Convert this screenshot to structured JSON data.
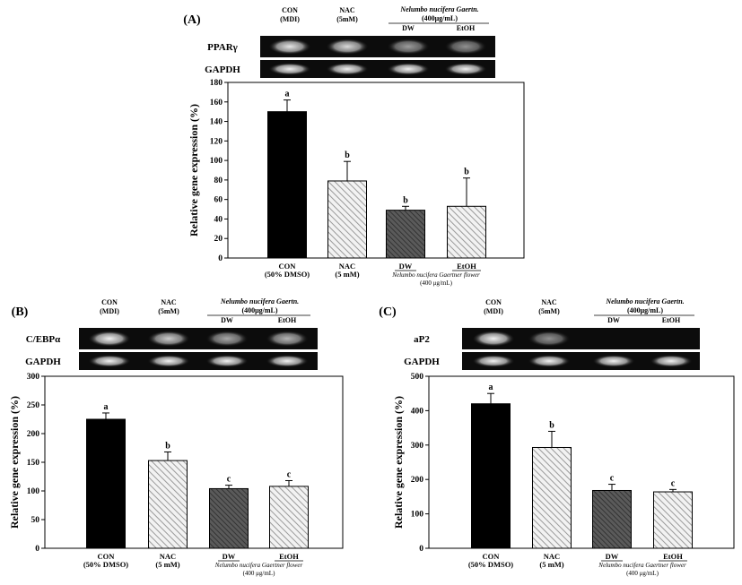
{
  "panels": [
    {
      "id": "A",
      "label": "(A)",
      "header": {
        "con": [
          "CON",
          "(MDI)"
        ],
        "nac": [
          "NAC",
          "(5mM)"
        ],
        "nelumbo": [
          "Nelumbo nucifera Gaertn.",
          "(400μg/mL)"
        ],
        "dw": "DW",
        "etoh": "EtOH"
      },
      "blots": [
        "PPARγ",
        "GAPDH"
      ],
      "blot_intensity": [
        [
          0.9,
          0.85,
          0.6,
          0.55
        ],
        [
          0.95,
          0.95,
          0.95,
          0.95
        ]
      ],
      "xlabels": {
        "con": [
          "CON",
          "(50% DMSO)"
        ],
        "nac": [
          "NAC",
          "(5 mM)"
        ],
        "dw": "DW",
        "etoh": "EtOH",
        "group": [
          "Nelumbo nucifera Gaertner flower",
          "(400 μg/mL)"
        ]
      }
    },
    {
      "id": "B",
      "label": "(B)",
      "header": {
        "con": [
          "CON",
          "(MDI)"
        ],
        "nac": [
          "NAC",
          "(5mM)"
        ],
        "nelumbo": [
          "Nelumbo nucifera Gaertn.",
          "(400μg/mL)"
        ],
        "dw": "DW",
        "etoh": "EtOH"
      },
      "blots": [
        "C/EBPα",
        "GAPDH"
      ],
      "blot_intensity": [
        [
          0.95,
          0.8,
          0.65,
          0.7
        ],
        [
          0.95,
          0.95,
          0.95,
          0.95
        ]
      ],
      "xlabels": {
        "con": [
          "CON",
          "(50% DMSO)"
        ],
        "nac": [
          "NAC",
          "(5 mM)"
        ],
        "dw": "DW",
        "etoh": "EtOH",
        "group": [
          "Nelumbo nucifera Gaertner flower",
          "(400 μg/mL)"
        ]
      }
    },
    {
      "id": "C",
      "label": "(C)",
      "header": {
        "con": [
          "CON",
          "(MDI)"
        ],
        "nac": [
          "NAC",
          "(5mM)"
        ],
        "nelumbo": [
          "Nelumbo nucifera Gaertn.",
          "(400μg/mL)"
        ],
        "dw": "DW",
        "etoh": "EtOH"
      },
      "blots": [
        "aP2",
        "GAPDH"
      ],
      "blot_intensity": [
        [
          0.95,
          0.55,
          0.0,
          0.0
        ],
        [
          0.95,
          0.95,
          0.95,
          0.95
        ]
      ],
      "xlabels": {
        "con": [
          "CON",
          "(50% DMSO)"
        ],
        "nac": [
          "NAC",
          "(5 mM)"
        ],
        "dw": "DW",
        "etoh": "EtOH",
        "group": [
          "Nelumbo nucifera Gaertner flower",
          "(400 μg/mL)"
        ]
      }
    }
  ],
  "chart_data": [
    {
      "type": "bar",
      "panel": "A",
      "categories": [
        "CON",
        "NAC",
        "DW",
        "EtOH"
      ],
      "values": [
        150,
        79,
        49,
        53
      ],
      "errors": [
        12,
        20,
        4,
        29
      ],
      "significance": [
        "a",
        "b",
        "b",
        "b"
      ],
      "ylabel": "Relative gene expression (%)",
      "ylim": [
        0,
        180
      ],
      "yticks": [
        0,
        20,
        40,
        60,
        80,
        100,
        120,
        140,
        160,
        180
      ],
      "bar_styles": [
        "solid-black",
        "light-hatch",
        "dark-hatch",
        "light-hatch"
      ]
    },
    {
      "type": "bar",
      "panel": "B",
      "categories": [
        "CON",
        "NAC",
        "DW",
        "EtOH"
      ],
      "values": [
        225,
        153,
        104,
        108
      ],
      "errors": [
        11,
        15,
        6,
        10
      ],
      "significance": [
        "a",
        "b",
        "c",
        "c"
      ],
      "ylabel": "Relative gene expression (%)",
      "ylim": [
        0,
        300
      ],
      "yticks": [
        0,
        50,
        100,
        150,
        200,
        250,
        300
      ],
      "bar_styles": [
        "solid-black",
        "light-hatch",
        "dark-hatch",
        "light-hatch"
      ]
    },
    {
      "type": "bar",
      "panel": "C",
      "categories": [
        "CON",
        "NAC",
        "DW",
        "EtOH"
      ],
      "values": [
        420,
        293,
        168,
        164
      ],
      "errors": [
        30,
        47,
        18,
        7
      ],
      "significance": [
        "a",
        "b",
        "c",
        "c"
      ],
      "ylabel": "Relative gene expression (%)",
      "ylim": [
        0,
        500
      ],
      "yticks": [
        0,
        100,
        200,
        300,
        400,
        500
      ],
      "bar_styles": [
        "solid-black",
        "light-hatch",
        "dark-hatch",
        "light-hatch"
      ]
    }
  ]
}
